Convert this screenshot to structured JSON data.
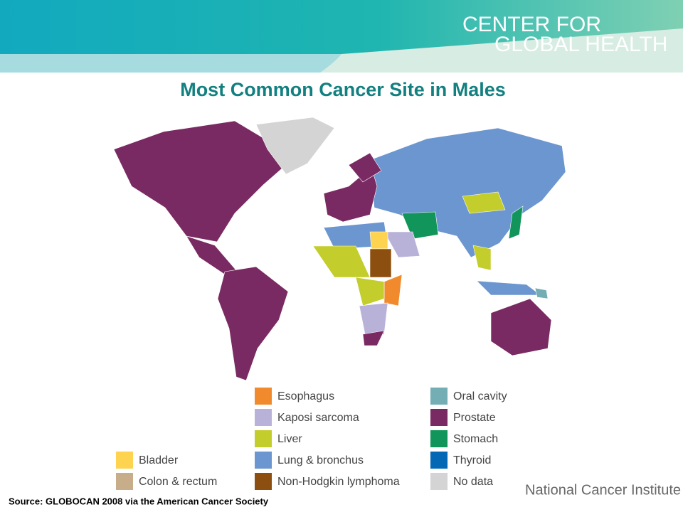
{
  "header": {
    "line1": "CENTER FOR",
    "line2": "GLOBAL HEALTH"
  },
  "title": "Most Common Cancer Site in Males",
  "legend": [
    [
      {
        "label": "Bladder",
        "color": "#fdd34f"
      },
      {
        "label": "Colon & rectum",
        "color": "#c8ad8a"
      }
    ],
    [
      {
        "label": "Esophagus",
        "color": "#f08a2c"
      },
      {
        "label": "Kaposi sarcoma",
        "color": "#b9b2d8"
      },
      {
        "label": "Liver",
        "color": "#c3cd2b"
      },
      {
        "label": "Lung & bronchus",
        "color": "#6b96cf"
      },
      {
        "label": "Non-Hodgkin lymphoma",
        "color": "#8c4f0f"
      }
    ],
    [
      {
        "label": "Oral cavity",
        "color": "#72aeb4"
      },
      {
        "label": "Prostate",
        "color": "#7a2a62"
      },
      {
        "label": "Stomach",
        "color": "#11955a"
      },
      {
        "label": "Thyroid",
        "color": "#0568b5"
      },
      {
        "label": "No data",
        "color": "#d4d4d4"
      }
    ]
  ],
  "source": "Source: GLOBOCAN 2008 via the American Cancer Society",
  "footer": "National Cancer Institute"
}
